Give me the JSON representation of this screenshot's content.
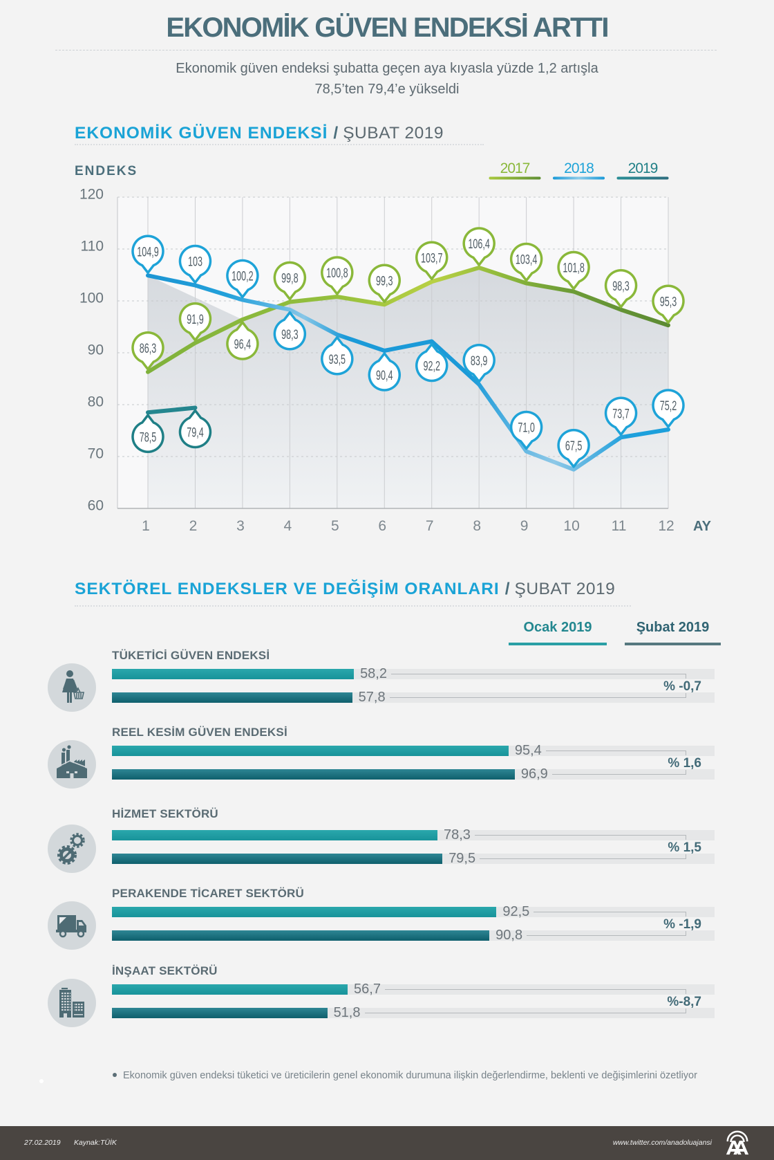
{
  "header": {
    "title": "EKONOMİK GÜVEN ENDEKSİ ARTTI",
    "subtitle_line1": "Ekonomik güven endeksi şubatta geçen aya kıyasla yüzde 1,2 artışla",
    "subtitle_line2": "78,5’ten 79,4’e yükseldi"
  },
  "chart_data": {
    "type": "line",
    "title": "EKONOMİK GÜVEN ENDEKSİ / ŞUBAT 2019",
    "title_main": "EKONOMİK GÜVEN ENDEKSİ",
    "title_separator": "/",
    "title_period": "ŞUBAT 2019",
    "ylabel": "ENDEKS",
    "xlabel": "AY",
    "x": [
      1,
      2,
      3,
      4,
      5,
      6,
      7,
      8,
      9,
      10,
      11,
      12
    ],
    "ylim": [
      60,
      120
    ],
    "yticks": [
      60,
      70,
      80,
      90,
      100,
      110,
      120
    ],
    "grid": true,
    "legend_position": "top-right",
    "series": [
      {
        "name": "2017",
        "color": "#8ab83a",
        "values": [
          86.3,
          91.9,
          96.4,
          99.8,
          100.8,
          99.3,
          103.7,
          106.4,
          103.4,
          101.8,
          98.3,
          95.3
        ],
        "labels": [
          "86,3",
          "91,9",
          "96,4",
          "99,8",
          "100,8",
          "99,3",
          "103,7",
          "106,4",
          "103,4",
          "101,8",
          "98,3",
          "95,3"
        ],
        "label_side": [
          "above",
          "above",
          "below",
          "above",
          "above",
          "above",
          "above",
          "above",
          "above",
          "above",
          "above",
          "above"
        ]
      },
      {
        "name": "2018",
        "color": "#1ea3d8",
        "values": [
          104.9,
          103.0,
          100.2,
          98.3,
          93.5,
          90.4,
          92.2,
          83.9,
          71.0,
          67.5,
          73.7,
          75.2
        ],
        "labels": [
          "104,9",
          "103",
          "100,2",
          "98,3",
          "93,5",
          "90,4",
          "92,2",
          "83,9",
          "71,0",
          "67,5",
          "73,7",
          "75,2"
        ],
        "label_side": [
          "above",
          "above",
          "above",
          "below",
          "below",
          "below",
          "below",
          "above",
          "above",
          "above",
          "above",
          "above"
        ]
      },
      {
        "name": "2019",
        "color": "#1f7f86",
        "values": [
          78.5,
          79.4
        ],
        "labels": [
          "78,5",
          "79,4"
        ],
        "label_side": [
          "below",
          "below"
        ]
      }
    ]
  },
  "sectors": {
    "title_main": "SEKTÖREL ENDEKSLER VE DEĞİŞİM ORANLARI",
    "title_separator": "/",
    "title_period": "ŞUBAT 2019",
    "columns": [
      "Ocak 2019",
      "Şubat 2019"
    ],
    "colors": {
      "ocak": "#1f9ea3",
      "subat": "#1d6f7b"
    },
    "items": [
      {
        "name": "TÜKETİCİ GÜVEN ENDEKSİ",
        "icon": "woman-shopper-icon",
        "ocak": 58.2,
        "ocak_label": "58,2",
        "subat": 57.8,
        "subat_label": "57,8",
        "change": "% -0,7"
      },
      {
        "name": "REEL KESİM GÜVEN ENDEKSİ",
        "icon": "factory-icon",
        "ocak": 95.4,
        "ocak_label": "95,4",
        "subat": 96.9,
        "subat_label": "96,9",
        "change": "% 1,6"
      },
      {
        "name": "HİZMET SEKTÖRÜ",
        "icon": "gears-icon",
        "ocak": 78.3,
        "ocak_label": "78,3",
        "subat": 79.5,
        "subat_label": "79,5",
        "change": "% 1,5"
      },
      {
        "name": "PERAKENDE TİCARET SEKTÖRÜ",
        "icon": "truck-icon",
        "ocak": 92.5,
        "ocak_label": "92,5",
        "subat": 90.8,
        "subat_label": "90,8",
        "change": "% -1,9"
      },
      {
        "name": "İNŞAAT SEKTÖRÜ",
        "icon": "buildings-icon",
        "ocak": 56.7,
        "ocak_label": "56,7",
        "subat": 51.8,
        "subat_label": "51,8",
        "change": "%-8,7"
      }
    ]
  },
  "footnote": "Ekonomik güven endeksi tüketici ve üreticilerin genel ekonomik durumuna ilişkin değerlendirme, beklenti ve değişimlerini özetliyor",
  "footer": {
    "date": "27.02.2019",
    "source": "Kaynak:TÜİK",
    "twitter": "www.twitter.com/anadoluajansi",
    "logo": "aa-logo-icon"
  }
}
